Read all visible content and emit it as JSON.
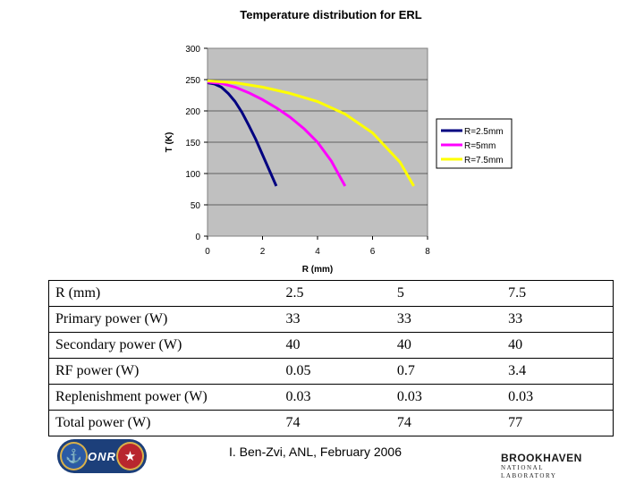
{
  "chart_data": {
    "type": "line",
    "title": "Temperature distribution for ERL",
    "xlabel": "R (mm)",
    "ylabel": "T (K)",
    "xlim": [
      0,
      8
    ],
    "ylim": [
      0,
      300
    ],
    "x_ticks": [
      "0",
      "2",
      "4",
      "6",
      "8"
    ],
    "y_ticks": [
      "0",
      "50",
      "100",
      "150",
      "200",
      "250",
      "300"
    ],
    "grid": "horizontal",
    "legend_position": "right",
    "series": [
      {
        "name": "R=2.5mm",
        "color": "#000080",
        "x": [
          0,
          0.25,
          0.5,
          0.75,
          1.0,
          1.25,
          1.5,
          1.75,
          2.0,
          2.25,
          2.5
        ],
        "y": [
          245,
          243,
          238,
          228,
          215,
          198,
          177,
          155,
          130,
          105,
          80
        ]
      },
      {
        "name": "R=5mm",
        "color": "#ff00ff",
        "x": [
          0,
          0.5,
          1.0,
          1.5,
          2.0,
          2.5,
          3.0,
          3.5,
          4.0,
          4.5,
          5.0
        ],
        "y": [
          246,
          244,
          238,
          229,
          218,
          205,
          190,
          172,
          150,
          120,
          80
        ]
      },
      {
        "name": "R=7.5mm",
        "color": "#ffff00",
        "x": [
          0,
          1,
          2,
          3,
          4,
          5,
          6,
          7,
          7.5
        ],
        "y": [
          248,
          245,
          238,
          228,
          215,
          195,
          165,
          118,
          80
        ]
      }
    ]
  },
  "table": {
    "rows": [
      {
        "label": "R (mm)",
        "values": [
          "2.5",
          "5",
          "7.5"
        ]
      },
      {
        "label": "Primary power (W)",
        "values": [
          "33",
          "33",
          "33"
        ]
      },
      {
        "label": "Secondary power (W)",
        "values": [
          "40",
          "40",
          "40"
        ]
      },
      {
        "label": "RF power (W)",
        "values": [
          "0.05",
          "0.7",
          "3.4"
        ]
      },
      {
        "label": "Replenishment power (W)",
        "values": [
          "0.03",
          "0.03",
          "0.03"
        ]
      },
      {
        "label": "Total power (W)",
        "values": [
          "74",
          "74",
          "77"
        ]
      }
    ]
  },
  "footer": {
    "credit": "I. Ben-Zvi, ANL, February 2006"
  },
  "logos": {
    "onr_text": "ONR",
    "bnl_main": "BROOKHAVEN",
    "bnl_sub": "NATIONAL LABORATORY"
  }
}
